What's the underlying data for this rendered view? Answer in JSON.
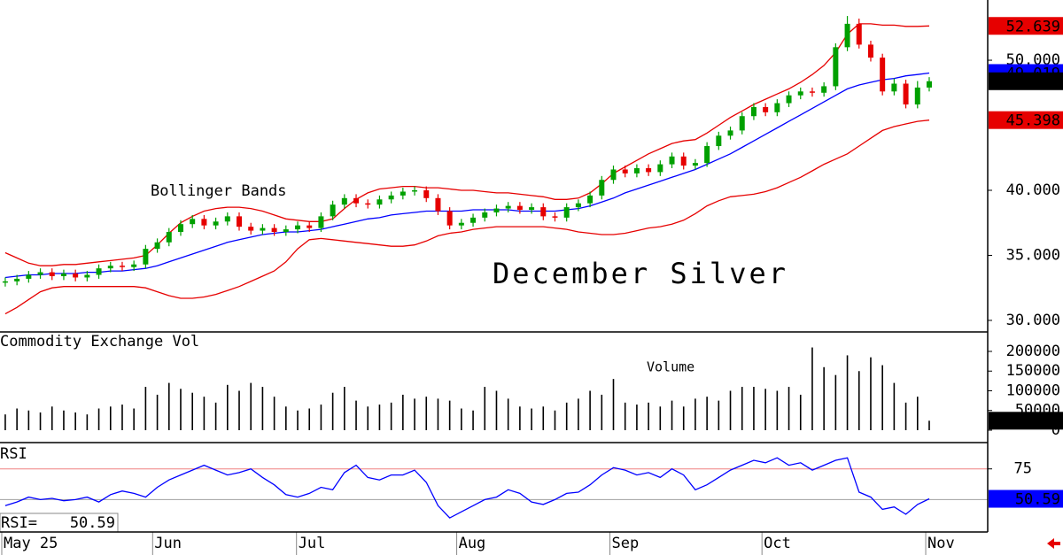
{
  "chart_data": [
    {
      "type": "candlestick",
      "annotations": [
        "Bollinger Bands",
        "December Silver"
      ],
      "xlim": [
        -0.45,
        84.0
      ],
      "ylim": [
        29.18,
        54.63
      ],
      "yticks": [
        {
          "value": 30,
          "label": "30.000"
        },
        {
          "value": 35,
          "label": "35.000"
        },
        {
          "value": 40,
          "label": "40.000"
        },
        {
          "value": 50,
          "label": "50.000"
        }
      ],
      "up_color": "#00a000",
      "down_color": "#e60000",
      "open": [
        32.9,
        33.0,
        33.2,
        33.5,
        33.7,
        33.4,
        33.6,
        33.3,
        33.5,
        34.0,
        34.2,
        34.1,
        34.3,
        35.5,
        36.0,
        36.8,
        37.4,
        37.8,
        37.3,
        37.6,
        38.0,
        37.2,
        36.9,
        37.1,
        36.8,
        37.0,
        37.3,
        37.1,
        38.0,
        38.9,
        39.4,
        39.0,
        38.9,
        39.3,
        39.6,
        39.9,
        40.0,
        39.4,
        38.4,
        37.3,
        37.5,
        37.9,
        38.3,
        38.6,
        38.8,
        38.5,
        38.7,
        38.0,
        37.9,
        38.7,
        39.0,
        39.6,
        40.8,
        41.6,
        41.3,
        41.7,
        41.4,
        42.0,
        42.6,
        41.9,
        42.1,
        43.4,
        44.2,
        44.6,
        45.7,
        46.4,
        46.0,
        46.7,
        47.3,
        47.6,
        47.5,
        48.0,
        51.0,
        52.8,
        51.2,
        50.2,
        47.6,
        48.2,
        46.6,
        47.9
      ],
      "high": [
        33.3,
        33.5,
        33.8,
        34.0,
        34.0,
        33.9,
        33.9,
        33.8,
        34.3,
        34.5,
        34.5,
        34.6,
        35.8,
        36.3,
        37.1,
        37.7,
        38.1,
        38.1,
        37.9,
        38.3,
        38.3,
        37.5,
        37.4,
        37.4,
        37.3,
        37.6,
        37.6,
        38.3,
        39.2,
        39.7,
        39.7,
        39.3,
        39.6,
        39.9,
        40.2,
        40.3,
        40.3,
        39.7,
        38.7,
        37.8,
        38.2,
        38.6,
        38.9,
        39.1,
        39.1,
        39.0,
        39.0,
        38.3,
        39.0,
        39.3,
        39.9,
        41.1,
        41.9,
        41.9,
        42.0,
        42.0,
        42.3,
        42.9,
        42.9,
        42.4,
        43.7,
        44.5,
        44.9,
        46.0,
        46.7,
        46.7,
        47.0,
        47.6,
        47.9,
        47.9,
        48.3,
        51.3,
        53.4,
        53.2,
        51.5,
        50.5,
        48.6,
        48.5,
        48.4,
        48.7
      ],
      "low": [
        32.6,
        32.7,
        32.9,
        33.2,
        33.1,
        33.1,
        33.0,
        33.0,
        33.2,
        33.7,
        33.8,
        33.8,
        34.0,
        35.2,
        35.7,
        36.5,
        37.1,
        37.0,
        37.0,
        37.3,
        36.9,
        36.6,
        36.6,
        36.5,
        36.5,
        36.7,
        36.8,
        36.8,
        37.7,
        38.6,
        38.7,
        38.6,
        38.6,
        39.0,
        39.3,
        39.6,
        39.1,
        38.1,
        37.0,
        37.0,
        37.2,
        37.6,
        38.0,
        38.3,
        38.2,
        38.2,
        37.7,
        37.6,
        37.6,
        38.4,
        38.7,
        39.3,
        40.5,
        41.0,
        41.0,
        41.1,
        41.1,
        41.7,
        41.6,
        41.6,
        41.8,
        43.1,
        43.9,
        44.3,
        45.4,
        45.7,
        45.7,
        46.4,
        47.0,
        47.2,
        47.2,
        47.7,
        50.7,
        50.9,
        49.9,
        47.3,
        47.3,
        46.3,
        46.3,
        47.6
      ],
      "close": [
        33.0,
        33.2,
        33.5,
        33.7,
        33.4,
        33.6,
        33.3,
        33.5,
        34.0,
        34.2,
        34.1,
        34.3,
        35.5,
        36.0,
        36.8,
        37.4,
        37.8,
        37.3,
        37.6,
        38.0,
        37.2,
        36.9,
        37.1,
        36.8,
        37.0,
        37.3,
        37.1,
        38.0,
        38.9,
        39.4,
        39.0,
        38.9,
        39.3,
        39.6,
        39.9,
        40.0,
        39.4,
        38.4,
        37.3,
        37.5,
        37.9,
        38.3,
        38.6,
        38.8,
        38.5,
        38.7,
        38.0,
        37.9,
        38.7,
        39.0,
        39.6,
        40.8,
        41.6,
        41.3,
        41.7,
        41.4,
        42.0,
        42.6,
        41.9,
        42.1,
        43.4,
        44.2,
        44.6,
        45.7,
        46.4,
        46.0,
        46.7,
        47.3,
        47.6,
        47.5,
        48.0,
        51.0,
        52.8,
        51.2,
        50.2,
        47.6,
        48.2,
        46.6,
        47.9,
        48.385
      ],
      "upper_band": {
        "color": "#e60000",
        "values": [
          35.2,
          34.8,
          34.4,
          34.2,
          34.2,
          34.3,
          34.3,
          34.4,
          34.5,
          34.6,
          34.7,
          34.8,
          35.0,
          35.8,
          36.7,
          37.5,
          38.0,
          38.4,
          38.6,
          38.7,
          38.7,
          38.6,
          38.4,
          38.1,
          37.8,
          37.7,
          37.6,
          37.6,
          37.8,
          38.6,
          39.3,
          39.8,
          40.1,
          40.2,
          40.3,
          40.3,
          40.2,
          40.2,
          40.1,
          40.0,
          40.0,
          39.9,
          39.8,
          39.8,
          39.7,
          39.6,
          39.5,
          39.3,
          39.3,
          39.4,
          39.8,
          40.5,
          41.3,
          41.8,
          42.3,
          42.8,
          43.2,
          43.6,
          43.8,
          43.9,
          44.4,
          45.0,
          45.6,
          46.1,
          46.6,
          47.0,
          47.4,
          47.8,
          48.3,
          48.9,
          49.6,
          50.6,
          52.0,
          52.8,
          52.8,
          52.7,
          52.7,
          52.6,
          52.6,
          52.639
        ]
      },
      "middle_band": {
        "color": "#0000ff",
        "values": [
          33.3,
          33.4,
          33.5,
          33.5,
          33.6,
          33.6,
          33.6,
          33.7,
          33.7,
          33.8,
          33.8,
          33.9,
          34.0,
          34.2,
          34.5,
          34.8,
          35.1,
          35.4,
          35.7,
          36.0,
          36.2,
          36.4,
          36.6,
          36.7,
          36.8,
          36.8,
          36.9,
          37.0,
          37.2,
          37.4,
          37.6,
          37.8,
          37.9,
          38.1,
          38.2,
          38.3,
          38.4,
          38.4,
          38.4,
          38.4,
          38.5,
          38.5,
          38.5,
          38.5,
          38.4,
          38.4,
          38.4,
          38.4,
          38.5,
          38.6,
          38.8,
          39.1,
          39.4,
          39.8,
          40.1,
          40.4,
          40.7,
          41.0,
          41.3,
          41.6,
          42.0,
          42.4,
          42.8,
          43.3,
          43.8,
          44.3,
          44.8,
          45.3,
          45.8,
          46.3,
          46.8,
          47.3,
          47.8,
          48.1,
          48.3,
          48.5,
          48.6,
          48.8,
          48.9,
          49.019
        ]
      },
      "lower_band": {
        "color": "#e60000",
        "values": [
          30.5,
          31.0,
          31.6,
          32.2,
          32.5,
          32.6,
          32.6,
          32.6,
          32.6,
          32.6,
          32.6,
          32.6,
          32.5,
          32.2,
          31.9,
          31.7,
          31.7,
          31.8,
          32.0,
          32.3,
          32.6,
          33.0,
          33.4,
          33.8,
          34.5,
          35.5,
          36.2,
          36.3,
          36.2,
          36.1,
          36.0,
          35.9,
          35.8,
          35.7,
          35.7,
          35.8,
          36.1,
          36.5,
          36.7,
          36.8,
          37.0,
          37.1,
          37.2,
          37.2,
          37.2,
          37.2,
          37.2,
          37.1,
          37.0,
          36.8,
          36.7,
          36.6,
          36.6,
          36.7,
          36.9,
          37.1,
          37.2,
          37.4,
          37.7,
          38.2,
          38.8,
          39.2,
          39.5,
          39.6,
          39.7,
          39.9,
          40.2,
          40.6,
          41.0,
          41.5,
          42.0,
          42.4,
          42.8,
          43.4,
          44.0,
          44.6,
          44.9,
          45.1,
          45.3,
          45.398
        ]
      }
    },
    {
      "type": "bar",
      "title": "Commodity Exchange Vol",
      "annotations": [
        "Volume"
      ],
      "color": "#000000",
      "xlim": [
        -0.45,
        84.0
      ],
      "ylim": [
        -31500,
        249400
      ],
      "yticks": [
        0,
        50000,
        100000,
        150000,
        200000
      ],
      "values": [
        40000,
        55000,
        50000,
        45000,
        60000,
        50000,
        45000,
        40000,
        55000,
        60000,
        65000,
        55000,
        110000,
        90000,
        120000,
        105000,
        95000,
        85000,
        70000,
        115000,
        100000,
        120000,
        110000,
        85000,
        60000,
        50000,
        55000,
        65000,
        95000,
        110000,
        75000,
        60000,
        65000,
        70000,
        90000,
        80000,
        85000,
        80000,
        75000,
        55000,
        50000,
        110000,
        100000,
        80000,
        60000,
        55000,
        60000,
        50000,
        70000,
        80000,
        100000,
        90000,
        130000,
        70000,
        65000,
        70000,
        60000,
        75000,
        60000,
        80000,
        85000,
        75000,
        100000,
        110000,
        110000,
        105000,
        100000,
        110000,
        90000,
        210000,
        160000,
        140000,
        190000,
        150000,
        185000,
        165000,
        120000,
        70000,
        85000,
        23998
      ]
    },
    {
      "type": "line",
      "title": "RSI",
      "readout_label": "RSI=",
      "color": "#0000ff",
      "xlim": [
        -0.45,
        84.0
      ],
      "ylim": [
        25,
        95
      ],
      "yticks": [
        75
      ],
      "reference_lines": [
        {
          "value": 75,
          "color": "#f08080"
        },
        {
          "value": 50,
          "color": "#a0a0a0"
        }
      ],
      "xticks": [
        {
          "value": -0.3,
          "label": "May 25"
        },
        {
          "value": 12.6,
          "label": "Jun"
        },
        {
          "value": 24.9,
          "label": "Jul"
        },
        {
          "value": 38.6,
          "label": "Aug"
        },
        {
          "value": 51.7,
          "label": "Sep"
        },
        {
          "value": 64.7,
          "label": "Oct"
        },
        {
          "value": 78.7,
          "label": "Nov"
        }
      ],
      "values": [
        45,
        48,
        52,
        50,
        51,
        49,
        50,
        52,
        48,
        54,
        57,
        55,
        52,
        60,
        66,
        70,
        74,
        78,
        74,
        70,
        72,
        75,
        68,
        62,
        54,
        52,
        55,
        60,
        58,
        72,
        78,
        68,
        66,
        70,
        70,
        74,
        64,
        45,
        35,
        40,
        45,
        50,
        52,
        58,
        55,
        48,
        46,
        50,
        55,
        56,
        62,
        70,
        76,
        74,
        70,
        72,
        68,
        75,
        70,
        58,
        62,
        68,
        74,
        78,
        82,
        80,
        84,
        78,
        80,
        74,
        78,
        82,
        84,
        56,
        52,
        42,
        44,
        38,
        46,
        50.59
      ]
    }
  ]
}
